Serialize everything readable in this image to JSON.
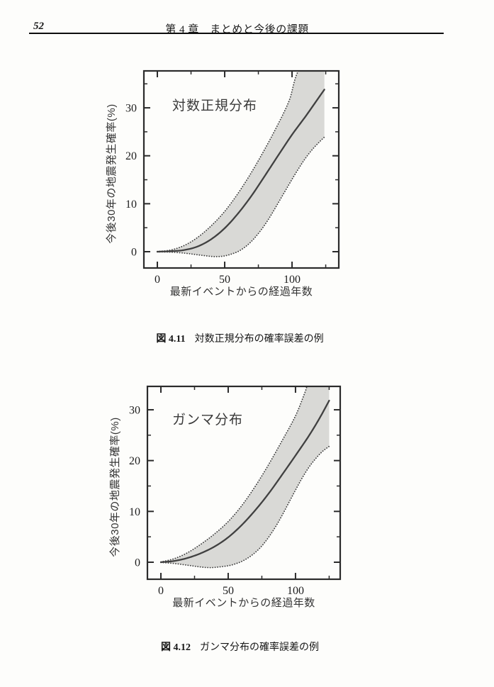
{
  "header": {
    "page_number": "52",
    "chapter_title": "第 4 章　まとめと今後の課題"
  },
  "figures": [
    {
      "caption_label": "図 4.11",
      "caption_text": "対数正規分布の確率誤差の例"
    },
    {
      "caption_label": "図 4.12",
      "caption_text": "ガンマ分布の確率誤差の例"
    }
  ],
  "colors": {
    "ink": "#2b2b2b",
    "curve": "#404040",
    "band": "#d9d9d6",
    "label": "#333333"
  },
  "chart_data": [
    {
      "type": "line",
      "title": "対数正規分布",
      "xlabel": "最新イベントからの経過年数",
      "ylabel": "今後30年の地震発生確率(%)",
      "xlim": [
        -10,
        134.7
      ],
      "ylim": [
        -3.4,
        37.7
      ],
      "xticks_major": [
        0,
        50,
        100
      ],
      "xticks_minor": [
        25,
        75,
        125
      ],
      "yticks_major": [
        0,
        10,
        20,
        30
      ],
      "yticks_minor": [
        5,
        15,
        25,
        35
      ],
      "legend": "none",
      "grid": false,
      "series": [
        {
          "name": "平均確率（実線）",
          "role": "mean",
          "style": "solid",
          "points": [
            [
              0,
              0
            ],
            [
              10,
              0.1
            ],
            [
              20,
              0.35
            ],
            [
              30,
              1.1
            ],
            [
              40,
              2.6
            ],
            [
              50,
              4.9
            ],
            [
              60,
              8.0
            ],
            [
              70,
              11.7
            ],
            [
              80,
              15.9
            ],
            [
              90,
              20.2
            ],
            [
              100,
              24.4
            ],
            [
              110,
              28.2
            ],
            [
              118,
              31.4
            ],
            [
              124,
              33.8
            ]
          ]
        },
        {
          "name": "誤差上限（点線）",
          "role": "upper",
          "style": "dotted",
          "points": [
            [
              0,
              0.05
            ],
            [
              10,
              0.35
            ],
            [
              20,
              1.3
            ],
            [
              30,
              3.0
            ],
            [
              40,
              5.4
            ],
            [
              50,
              8.4
            ],
            [
              60,
              12.2
            ],
            [
              70,
              16.6
            ],
            [
              80,
              21.5
            ],
            [
              90,
              26.8
            ],
            [
              98,
              31.6
            ],
            [
              106,
              38.2
            ],
            [
              124,
              39.5
            ]
          ]
        },
        {
          "name": "誤差下限（点線）",
          "role": "lower",
          "style": "dotted",
          "points": [
            [
              0,
              -0.05
            ],
            [
              10,
              -0.1
            ],
            [
              20,
              -0.3
            ],
            [
              30,
              -0.65
            ],
            [
              40,
              -0.98
            ],
            [
              45,
              -1.02
            ],
            [
              50,
              -0.88
            ],
            [
              55,
              -0.5
            ],
            [
              60,
              0.05
            ],
            [
              65,
              0.95
            ],
            [
              70,
              2.2
            ],
            [
              75,
              3.8
            ],
            [
              80,
              5.7
            ],
            [
              85,
              7.9
            ],
            [
              90,
              10.3
            ],
            [
              95,
              12.7
            ],
            [
              100,
              15.1
            ],
            [
              105,
              17.4
            ],
            [
              110,
              19.5
            ],
            [
              115,
              21.3
            ],
            [
              120,
              22.8
            ],
            [
              124,
              23.9
            ]
          ]
        }
      ]
    },
    {
      "type": "line",
      "title": "ガンマ分布",
      "xlabel": "最新イベントからの経過年数",
      "ylabel": "今後30年の地震発生確率(%)",
      "xlim": [
        -10,
        133.2
      ],
      "ylim": [
        -3.35,
        34.6
      ],
      "xticks_major": [
        0,
        50,
        100
      ],
      "xticks_minor": [
        25,
        75,
        125
      ],
      "yticks_major": [
        0,
        10,
        20,
        30
      ],
      "yticks_minor": [
        5,
        15,
        25,
        35
      ],
      "legend": "none",
      "grid": false,
      "series": [
        {
          "name": "平均確率（実線）",
          "role": "mean",
          "style": "solid",
          "points": [
            [
              0,
              0
            ],
            [
              10,
              0.25
            ],
            [
              20,
              0.85
            ],
            [
              30,
              1.8
            ],
            [
              40,
              3.1
            ],
            [
              50,
              4.9
            ],
            [
              60,
              7.3
            ],
            [
              70,
              10.2
            ],
            [
              80,
              13.5
            ],
            [
              90,
              17.2
            ],
            [
              100,
              21.0
            ],
            [
              110,
              24.9
            ],
            [
              118,
              28.4
            ],
            [
              125,
              31.8
            ]
          ]
        },
        {
          "name": "誤差上限（点線）",
          "role": "upper",
          "style": "dotted",
          "points": [
            [
              0,
              0.05
            ],
            [
              10,
              0.7
            ],
            [
              20,
              1.9
            ],
            [
              30,
              3.6
            ],
            [
              40,
              5.6
            ],
            [
              50,
              8.0
            ],
            [
              60,
              11.1
            ],
            [
              70,
              14.9
            ],
            [
              80,
              19.2
            ],
            [
              90,
              23.9
            ],
            [
              100,
              28.8
            ],
            [
              107,
              33.4
            ],
            [
              112,
              36.8
            ],
            [
              125,
              38.5
            ]
          ]
        },
        {
          "name": "誤差下限（点線）",
          "role": "lower",
          "style": "dotted",
          "points": [
            [
              0,
              -0.05
            ],
            [
              10,
              -0.25
            ],
            [
              20,
              -0.6
            ],
            [
              30,
              -0.95
            ],
            [
              35,
              -1.05
            ],
            [
              40,
              -1.02
            ],
            [
              50,
              -0.7
            ],
            [
              55,
              -0.35
            ],
            [
              60,
              0.15
            ],
            [
              65,
              0.9
            ],
            [
              70,
              1.9
            ],
            [
              75,
              3.2
            ],
            [
              80,
              4.9
            ],
            [
              85,
              6.9
            ],
            [
              90,
              9.2
            ],
            [
              95,
              11.7
            ],
            [
              100,
              14.2
            ],
            [
              105,
              16.6
            ],
            [
              110,
              18.7
            ],
            [
              115,
              20.4
            ],
            [
              120,
              21.8
            ],
            [
              125,
              22.8
            ]
          ]
        }
      ]
    }
  ]
}
